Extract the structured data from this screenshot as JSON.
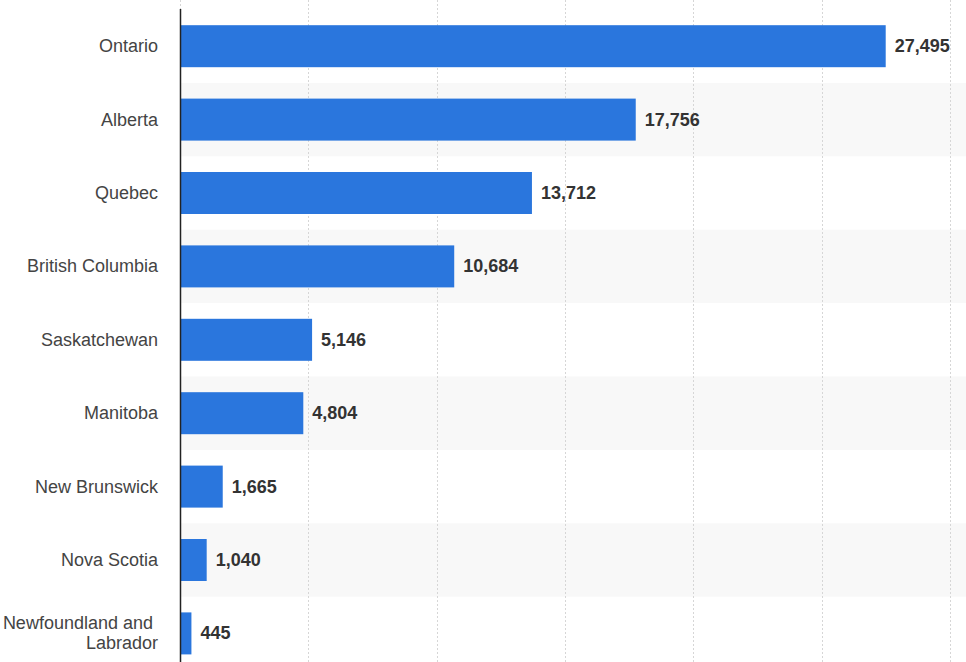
{
  "chart_data": {
    "type": "bar",
    "orientation": "horizontal",
    "categories": [
      "Ontario",
      "Alberta",
      "Quebec",
      "British Columbia",
      "Saskatchewan",
      "Manitoba",
      "New Brunswick",
      "Nova Scotia",
      "Newfoundland and Labrador"
    ],
    "values": [
      27495,
      17756,
      13712,
      10684,
      5146,
      4804,
      1665,
      1040,
      445
    ],
    "value_labels": [
      "27,495",
      "17,756",
      "13,712",
      "10,684",
      "5,146",
      "4,804",
      "1,665",
      "1,040",
      "445"
    ],
    "color": "#2a76dd",
    "xlim": [
      0,
      30000
    ],
    "xticks": [
      0,
      5000,
      10000,
      15000,
      20000,
      25000,
      30000
    ],
    "grid": true,
    "data_labels": true,
    "tick_labels": false
  }
}
